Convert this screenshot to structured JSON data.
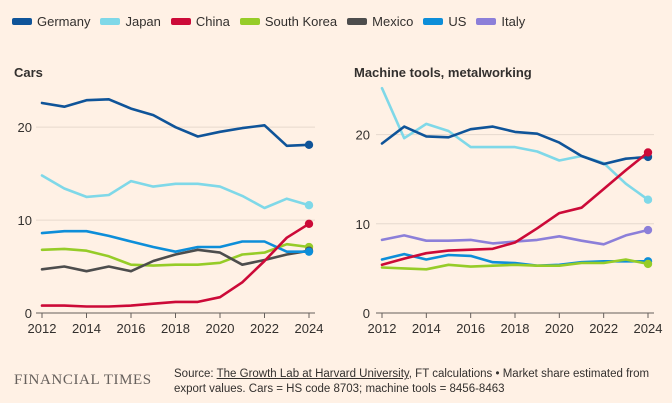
{
  "legend": [
    {
      "name": "Germany",
      "color": "#0f5499"
    },
    {
      "name": "Japan",
      "color": "#7fd8e8"
    },
    {
      "name": "China",
      "color": "#cc0a38"
    },
    {
      "name": "South Korea",
      "color": "#96cc28"
    },
    {
      "name": "Mexico",
      "color": "#4d4d4d"
    },
    {
      "name": "US",
      "color": "#0d8ed9"
    },
    {
      "name": "Italy",
      "color": "#8c7fd9"
    }
  ],
  "footer": {
    "logo": "FINANCIAL TIMES",
    "source_prefix": "Source: ",
    "source_link": "The Growth Lab at Harvard University",
    "source_rest": ", FT calculations • Market share estimated from export values. Cars = HS code 8703; machine tools = 8456-8463"
  },
  "chart_data": [
    {
      "type": "line",
      "title": "Cars",
      "x": [
        2012,
        2013,
        2014,
        2015,
        2016,
        2017,
        2018,
        2019,
        2020,
        2021,
        2022,
        2023,
        2024
      ],
      "x_ticks": [
        2012,
        2014,
        2016,
        2018,
        2020,
        2022,
        2024
      ],
      "y_ticks": [
        0,
        10,
        20
      ],
      "ylim": [
        0,
        24
      ],
      "xlabel": "",
      "ylabel": "",
      "grid": true,
      "series": [
        {
          "name": "Japan",
          "color": "#7fd8e8",
          "values": [
            14.8,
            13.4,
            12.5,
            12.7,
            14.2,
            13.6,
            13.9,
            13.9,
            13.6,
            12.6,
            11.3,
            12.3,
            11.6
          ]
        },
        {
          "name": "Germany",
          "color": "#0f5499",
          "values": [
            22.6,
            22.2,
            22.9,
            23.0,
            22.0,
            21.3,
            20.0,
            19.0,
            19.5,
            19.9,
            20.2,
            18.0,
            18.1
          ]
        },
        {
          "name": "South Korea",
          "color": "#96cc28",
          "values": [
            6.8,
            6.9,
            6.7,
            6.1,
            5.2,
            5.1,
            5.2,
            5.2,
            5.4,
            6.3,
            6.5,
            7.4,
            7.1
          ]
        },
        {
          "name": "Mexico",
          "color": "#4d4d4d",
          "values": [
            4.7,
            5.0,
            4.5,
            5.0,
            4.5,
            5.6,
            6.3,
            6.8,
            6.5,
            5.2,
            5.7,
            6.3,
            6.7
          ]
        },
        {
          "name": "US",
          "color": "#0d8ed9",
          "values": [
            8.6,
            8.8,
            8.8,
            8.3,
            7.7,
            7.1,
            6.6,
            7.1,
            7.1,
            7.7,
            7.7,
            6.6,
            6.6
          ]
        },
        {
          "name": "China",
          "color": "#cc0a38",
          "values": [
            0.8,
            0.8,
            0.7,
            0.7,
            0.8,
            1.0,
            1.2,
            1.2,
            1.7,
            3.3,
            5.6,
            8.1,
            9.6
          ]
        }
      ]
    },
    {
      "type": "line",
      "title": "Machine tools, metalworking",
      "x": [
        2012,
        2013,
        2014,
        2015,
        2016,
        2017,
        2018,
        2019,
        2020,
        2021,
        2022,
        2023,
        2024
      ],
      "x_ticks": [
        2012,
        2014,
        2016,
        2018,
        2020,
        2022,
        2024
      ],
      "y_ticks": [
        0,
        10,
        20
      ],
      "ylim": [
        0,
        25
      ],
      "xlabel": "",
      "ylabel": "",
      "grid": true,
      "series": [
        {
          "name": "Japan",
          "color": "#7fd8e8",
          "values": [
            25.2,
            19.6,
            21.2,
            20.4,
            18.6,
            18.6,
            18.6,
            18.1,
            17.1,
            17.6,
            16.8,
            14.5,
            12.7
          ]
        },
        {
          "name": "Germany",
          "color": "#0f5499",
          "values": [
            19.0,
            20.9,
            19.8,
            19.7,
            20.6,
            20.9,
            20.3,
            20.1,
            19.1,
            17.6,
            16.7,
            17.3,
            17.5
          ]
        },
        {
          "name": "Italy",
          "color": "#8c7fd9",
          "values": [
            8.2,
            8.7,
            8.1,
            8.1,
            8.2,
            7.8,
            8.0,
            8.2,
            8.6,
            8.1,
            7.7,
            8.7,
            9.3
          ]
        },
        {
          "name": "US",
          "color": "#0d8ed9",
          "values": [
            6.0,
            6.6,
            6.0,
            6.5,
            6.4,
            5.7,
            5.6,
            5.3,
            5.4,
            5.7,
            5.8,
            5.8,
            5.8
          ]
        },
        {
          "name": "South Korea",
          "color": "#96cc28",
          "values": [
            5.1,
            5.0,
            4.9,
            5.4,
            5.2,
            5.3,
            5.4,
            5.3,
            5.3,
            5.6,
            5.6,
            6.0,
            5.5
          ]
        },
        {
          "name": "China",
          "color": "#cc0a38",
          "values": [
            5.4,
            6.1,
            6.7,
            7.0,
            7.1,
            7.2,
            7.9,
            9.5,
            11.2,
            11.8,
            13.9,
            16.0,
            18.0
          ]
        }
      ]
    }
  ]
}
